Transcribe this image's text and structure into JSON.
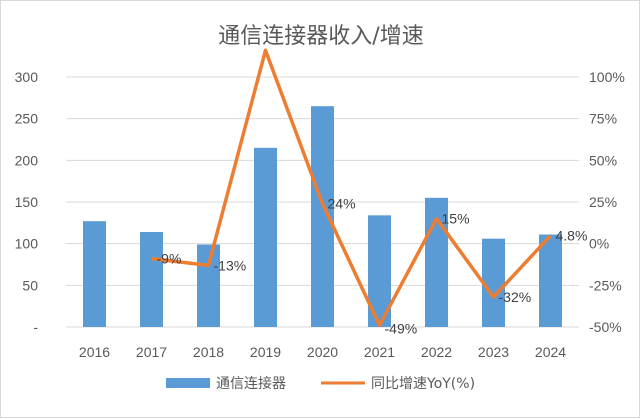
{
  "chart_data": {
    "type": "bar",
    "title": "通信连接器收入/增速",
    "categories": [
      "2016",
      "2017",
      "2018",
      "2019",
      "2020",
      "2021",
      "2022",
      "2023",
      "2024"
    ],
    "series": [
      {
        "name": "通信连接器",
        "type": "bar",
        "axis": "left",
        "color": "#5b9bd5",
        "values": [
          127,
          114,
          99,
          215,
          265,
          134,
          155,
          106,
          111
        ]
      },
      {
        "name": "同比增速YoY(%)",
        "type": "line",
        "axis": "right",
        "color": "#ed7d31",
        "values": [
          null,
          -9,
          -13,
          116,
          24,
          -49,
          15,
          -32,
          4.8
        ],
        "labels": [
          "",
          "-9%",
          "-13%",
          "",
          "24%",
          "-49%",
          "15%",
          "-32%",
          "4.8%"
        ]
      }
    ],
    "y_left": {
      "ticks": [
        "300",
        "250",
        "200",
        "150",
        "100",
        "50",
        "-"
      ],
      "ylim": [
        0,
        300
      ]
    },
    "y_right": {
      "ticks": [
        "100%",
        "75%",
        "50%",
        "25%",
        "0%",
        "-25%",
        "-50%"
      ],
      "ylim": [
        -50,
        100
      ]
    },
    "grid": true,
    "legend": "bottom"
  }
}
